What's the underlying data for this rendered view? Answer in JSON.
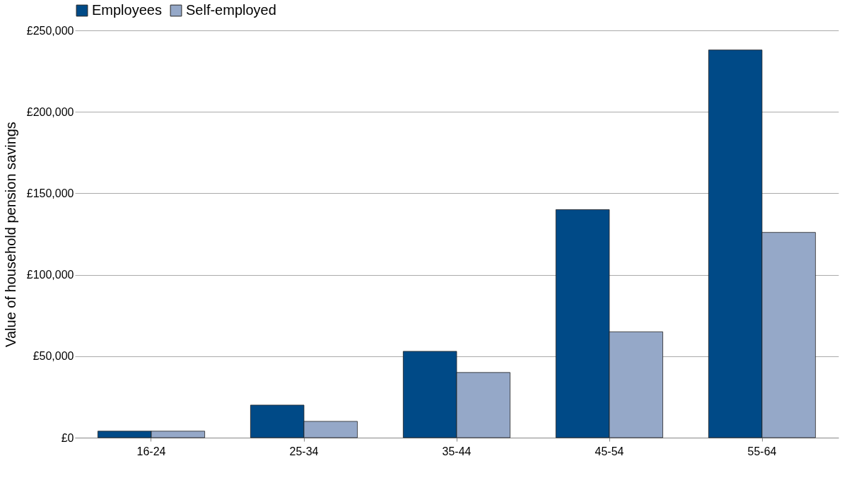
{
  "chart_data": {
    "type": "bar",
    "ylabel": "Value of household pension savings",
    "categories": [
      "16-24",
      "25-34",
      "35-44",
      "45-54",
      "55-64"
    ],
    "series": [
      {
        "name": "Employees",
        "color": "#004a87",
        "values": [
          4000,
          20000,
          53000,
          140000,
          238000
        ]
      },
      {
        "name": "Self-employed",
        "color": "#95a8c8",
        "values": [
          4000,
          10000,
          40000,
          65000,
          126000
        ]
      }
    ],
    "ylim": [
      0,
      250000
    ],
    "yticks": [
      {
        "value": 0,
        "label": "£0"
      },
      {
        "value": 50000,
        "label": "£50,000"
      },
      {
        "value": 100000,
        "label": "£100,000"
      },
      {
        "value": 150000,
        "label": "£150,000"
      },
      {
        "value": 200000,
        "label": "£200,000"
      },
      {
        "value": 250000,
        "label": "£250,000"
      }
    ],
    "grid": "y",
    "legend": "top"
  }
}
